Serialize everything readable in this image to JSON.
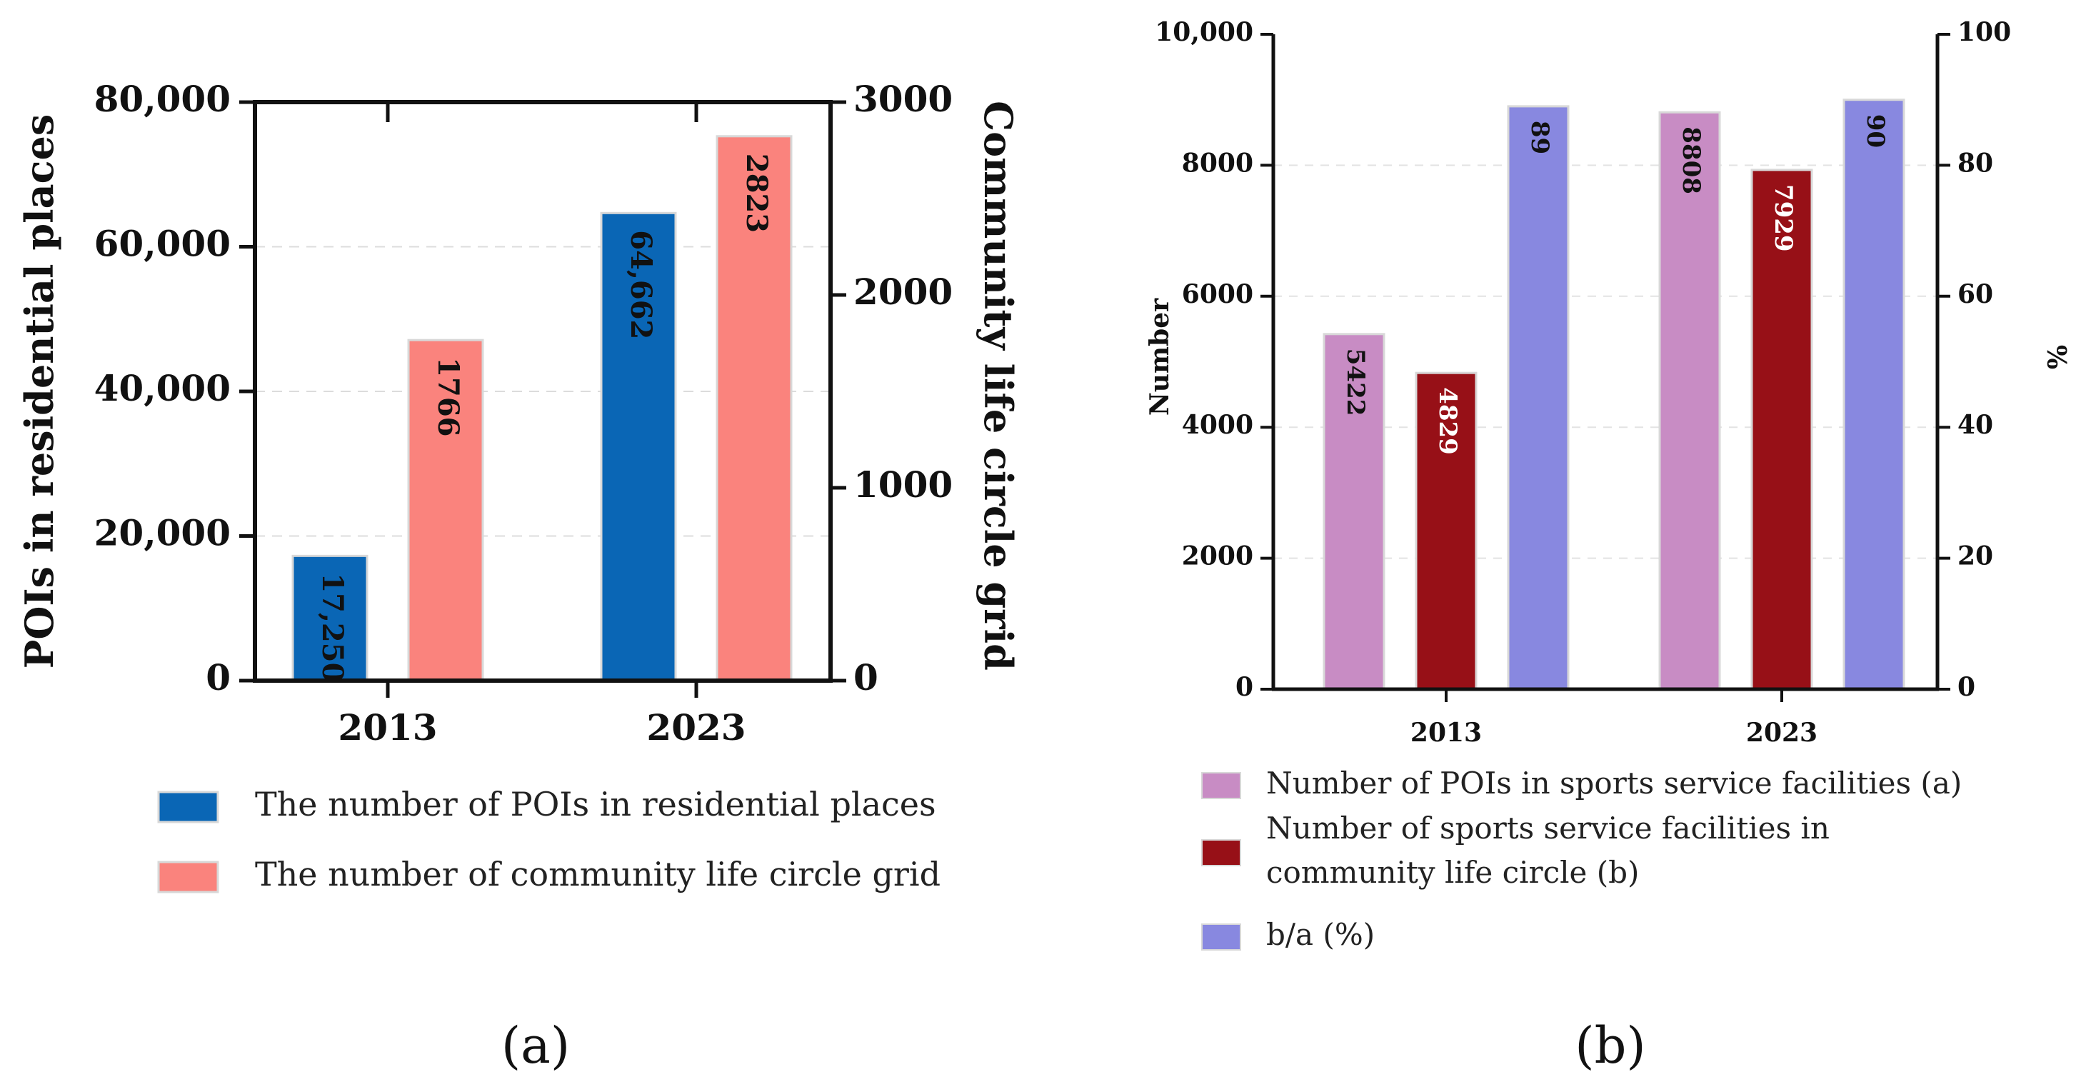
{
  "chart_data": [
    {
      "type": "bar",
      "panel_label": "(a)",
      "categories": [
        "2013",
        "2023"
      ],
      "series": [
        {
          "name": "The number of POIs in residential places",
          "axis": "left",
          "color": "#0A66B5",
          "values": [
            17250,
            64662
          ],
          "labels": [
            "17,250",
            "64,662"
          ]
        },
        {
          "name": "The number of community life circle grid",
          "axis": "right",
          "color": "#FA837D",
          "values": [
            1766,
            2823
          ],
          "labels": [
            "1766",
            "2823"
          ]
        }
      ],
      "ylabel": "POIs in residential places",
      "ylabel_right": "Community life circle grid",
      "ylim": [
        0,
        80000
      ],
      "ylim_right": [
        0,
        3000
      ],
      "yticks": [
        "0",
        "20,000",
        "40,000",
        "60,000",
        "80,000"
      ],
      "yticks_right": [
        "0",
        "1000",
        "2000",
        "3000"
      ],
      "grid": true,
      "legend": "bottom"
    },
    {
      "type": "bar",
      "panel_label": "(b)",
      "categories": [
        "2013",
        "2023"
      ],
      "series": [
        {
          "name": "Number of POIs in sports service facilities (a)",
          "axis": "left",
          "color": "#C88CC4",
          "values": [
            5422,
            8808
          ],
          "labels": [
            "5422",
            "8808"
          ]
        },
        {
          "name": "Number of sports service facilities in community life circle (b)",
          "legend_lines": [
            "Number of sports service facilities in",
            "community life circle (b)"
          ],
          "axis": "left",
          "color": "#971017",
          "values": [
            4829,
            7929
          ],
          "labels": [
            "4829",
            "7929"
          ]
        },
        {
          "name": "b/a (%)",
          "axis": "right",
          "color": "#8888E0",
          "values": [
            89,
            90
          ],
          "labels": [
            "89",
            "90"
          ]
        }
      ],
      "ylabel": "Number",
      "ylabel_right": "%",
      "ylim": [
        0,
        10000
      ],
      "ylim_right": [
        0,
        100
      ],
      "yticks": [
        "0",
        "2000",
        "4000",
        "6000",
        "8000",
        "10,000"
      ],
      "yticks_right": [
        "0",
        "20",
        "40",
        "60",
        "80",
        "100"
      ],
      "grid": true,
      "legend": "bottom"
    }
  ]
}
